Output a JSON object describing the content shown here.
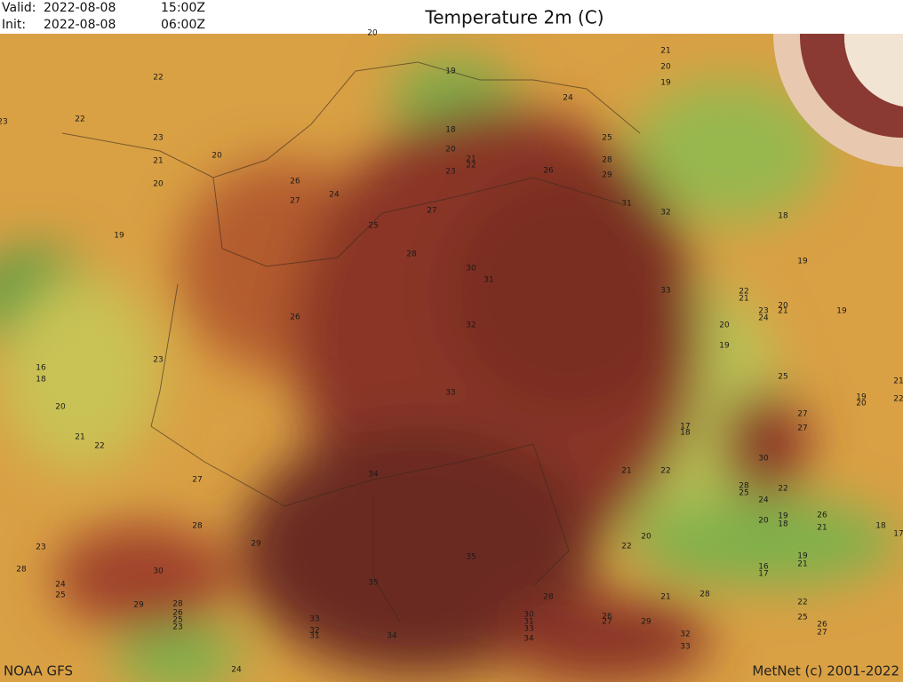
{
  "header": {
    "valid_label": "Valid:",
    "valid_date": "2022-08-08",
    "valid_time": "15:00Z",
    "init_label": "Init:",
    "init_date": "2022-08-08",
    "init_time": "06:00Z"
  },
  "title": "Temperature 2m (C)",
  "footer": {
    "source": "NOAA GFS",
    "credit": "MetNet (c) 2001-2022"
  },
  "labels": [
    "20",
    "19",
    "22",
    "22",
    "23",
    "18",
    "23",
    "20",
    "21",
    "22",
    "21",
    "20",
    "23",
    "20",
    "26",
    "24",
    "27",
    "26",
    "27",
    "25",
    "19",
    "28",
    "30",
    "31",
    "26",
    "32",
    "23",
    "16",
    "18",
    "20",
    "33",
    "21",
    "22",
    "27",
    "34",
    "28",
    "29",
    "23",
    "28",
    "30",
    "24",
    "25",
    "35",
    "35",
    "29",
    "33",
    "32",
    "31",
    "34",
    "23",
    "24",
    "24",
    "25",
    "28",
    "29",
    "31",
    "32",
    "21",
    "20",
    "19",
    "33",
    "18",
    "19",
    "22",
    "21",
    "23",
    "24",
    "20",
    "21",
    "19",
    "20",
    "19",
    "25",
    "19",
    "20",
    "21",
    "22",
    "27",
    "27",
    "17",
    "18",
    "30",
    "21",
    "22",
    "28",
    "25",
    "24",
    "22",
    "20",
    "19",
    "18",
    "26",
    "21",
    "18",
    "17",
    "20",
    "22",
    "19",
    "21",
    "16",
    "17",
    "28",
    "21",
    "28",
    "22",
    "25",
    "26",
    "27",
    "30",
    "31",
    "33",
    "34",
    "26",
    "27",
    "29",
    "32",
    "33",
    "28",
    "26",
    "25"
  ]
}
